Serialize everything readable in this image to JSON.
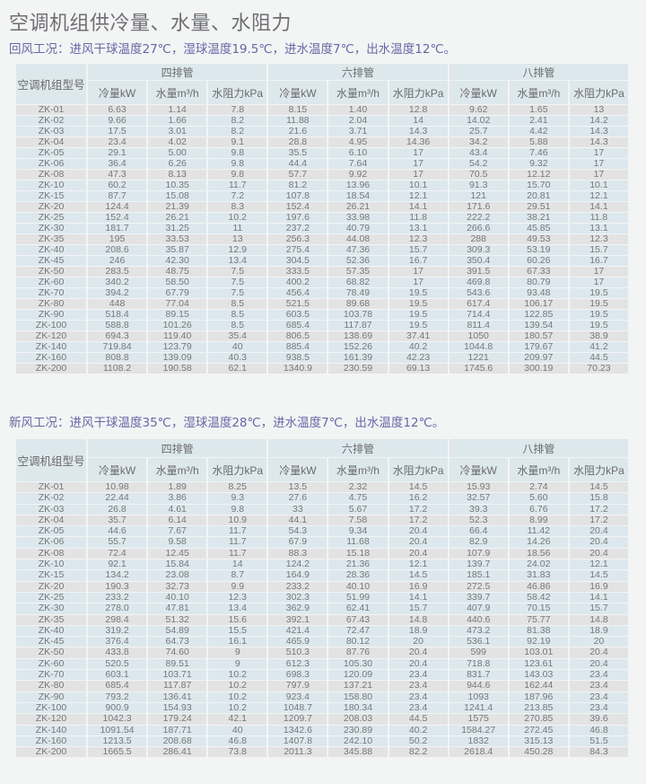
{
  "title": "空调机组供冷量、水量、水阻力",
  "model_header": "空调机组型号",
  "groups": [
    "四排管",
    "六排管",
    "八排管"
  ],
  "columns": [
    "冷量kW",
    "水量m³/h",
    "水阻力kPa"
  ],
  "colors": {
    "subtitle": "#6b65a6",
    "header_bg": "#dde8ed",
    "row_grey": "#e3e3e3",
    "row_blue": "#dce8ee"
  },
  "tables": [
    {
      "subtitle": "回风工况：进风干球温度27℃，湿球温度19.5℃，进水温度7℃，出水温度12℃。",
      "rows": [
        [
          "ZK-01",
          "6.63",
          "1.14",
          "7.8",
          "8.15",
          "1.40",
          "12.8",
          "9.62",
          "1.65",
          "13"
        ],
        [
          "ZK-02",
          "9.66",
          "1.66",
          "8.2",
          "11.88",
          "2.04",
          "14",
          "14.02",
          "2.41",
          "14.2"
        ],
        [
          "ZK-03",
          "17.5",
          "3.01",
          "8.2",
          "21.6",
          "3.71",
          "14.3",
          "25.7",
          "4.42",
          "14.3"
        ],
        [
          "ZK-04",
          "23.4",
          "4.02",
          "9.1",
          "28.8",
          "4.95",
          "14.36",
          "34.2",
          "5.88",
          "14.3"
        ],
        [
          "ZK-05",
          "29.1",
          "5.00",
          "9.8",
          "35.5",
          "6.10",
          "17",
          "43.4",
          "7.46",
          "17"
        ],
        [
          "ZK-06",
          "36.4",
          "6.26",
          "9.8",
          "44.4",
          "7.64",
          "17",
          "54.2",
          "9.32",
          "17"
        ],
        [
          "ZK-08",
          "47.3",
          "8.13",
          "9.8",
          "57.7",
          "9.92",
          "17",
          "70.5",
          "12.12",
          "17"
        ],
        [
          "ZK-10",
          "60.2",
          "10.35",
          "11.7",
          "81.2",
          "13.96",
          "10.1",
          "91.3",
          "15.70",
          "10.1"
        ],
        [
          "ZK-15",
          "87.7",
          "15.08",
          "7.2",
          "107.8",
          "18.54",
          "12.1",
          "121",
          "20.81",
          "12.1"
        ],
        [
          "ZK-20",
          "124.4",
          "21.39",
          "8.3",
          "152.4",
          "26.21",
          "14.1",
          "171.6",
          "29.51",
          "14.1"
        ],
        [
          "ZK-25",
          "152.4",
          "26.21",
          "10.2",
          "197.6",
          "33.98",
          "11.8",
          "222.2",
          "38.21",
          "11.8"
        ],
        [
          "ZK-30",
          "181.7",
          "31.25",
          "11",
          "237.2",
          "40.79",
          "13.1",
          "266.6",
          "45.85",
          "13.1"
        ],
        [
          "ZK-35",
          "195",
          "33.53",
          "13",
          "256.3",
          "44.08",
          "12.3",
          "288",
          "49.53",
          "12.3"
        ],
        [
          "ZK-40",
          "208.6",
          "35.87",
          "12.9",
          "275.4",
          "47.36",
          "15.7",
          "309.3",
          "53.19",
          "15.7"
        ],
        [
          "ZK-45",
          "246",
          "42.30",
          "13.4",
          "304.5",
          "52.36",
          "16.7",
          "350.4",
          "60.26",
          "16.7"
        ],
        [
          "ZK-50",
          "283.5",
          "48.75",
          "7.5",
          "333.5",
          "57.35",
          "17",
          "391.5",
          "67.33",
          "17"
        ],
        [
          "ZK-60",
          "340.2",
          "58.50",
          "7.5",
          "400.2",
          "68.82",
          "17",
          "469.8",
          "80.79",
          "17"
        ],
        [
          "ZK-70",
          "394.2",
          "67.79",
          "7.5",
          "456.4",
          "78.49",
          "19.5",
          "543.6",
          "93.48",
          "19.5"
        ],
        [
          "ZK-80",
          "448",
          "77.04",
          "8.5",
          "521.5",
          "89.68",
          "19.5",
          "617.4",
          "106.17",
          "19.5"
        ],
        [
          "ZK-90",
          "518.4",
          "89.15",
          "8.5",
          "603.5",
          "103.78",
          "19.5",
          "714.4",
          "122.85",
          "19.5"
        ],
        [
          "ZK-100",
          "588.8",
          "101.26",
          "8.5",
          "685.4",
          "117.87",
          "19.5",
          "811.4",
          "139.54",
          "19.5"
        ],
        [
          "ZK-120",
          "694.3",
          "119.40",
          "35.4",
          "806.5",
          "138.69",
          "37.41",
          "1050",
          "180.57",
          "38.9"
        ],
        [
          "ZK-140",
          "719.84",
          "123.79",
          "40",
          "885.4",
          "152.26",
          "40.2",
          "1044.8",
          "179.67",
          "41.2"
        ],
        [
          "ZK-160",
          "808.8",
          "139.09",
          "40.3",
          "938.5",
          "161.39",
          "42.23",
          "1221",
          "209.97",
          "44.5"
        ],
        [
          "ZK-200",
          "1108.2",
          "190.58",
          "62.1",
          "1340.9",
          "230.59",
          "69.13",
          "1745.6",
          "300.19",
          "70.23"
        ]
      ]
    },
    {
      "subtitle": "新风工况：进风干球温度35℃，湿球温度28℃，进水温度7℃，出水温度12℃。",
      "rows": [
        [
          "ZK-01",
          "10.98",
          "1.89",
          "8.25",
          "13.5",
          "2.32",
          "14.5",
          "15.93",
          "2.74",
          "14.5"
        ],
        [
          "ZK-02",
          "22.44",
          "3.86",
          "9.3",
          "27.6",
          "4.75",
          "16.2",
          "32.57",
          "5.60",
          "15.8"
        ],
        [
          "ZK-03",
          "26.8",
          "4.61",
          "9.8",
          "33",
          "5.67",
          "17.2",
          "39.3",
          "6.76",
          "17.2"
        ],
        [
          "ZK-04",
          "35.7",
          "6.14",
          "10.9",
          "44.1",
          "7.58",
          "17.2",
          "52.3",
          "8.99",
          "17.2"
        ],
        [
          "ZK-05",
          "44.6",
          "7.67",
          "11.7",
          "54.3",
          "9.34",
          "20.4",
          "66.4",
          "11.42",
          "20.4"
        ],
        [
          "ZK-06",
          "55.7",
          "9.58",
          "11.7",
          "67.9",
          "11.68",
          "20.4",
          "82.9",
          "14.26",
          "20.4"
        ],
        [
          "ZK-08",
          "72.4",
          "12.45",
          "11.7",
          "88.3",
          "15.18",
          "20.4",
          "107.9",
          "18.56",
          "20.4"
        ],
        [
          "ZK-10",
          "92.1",
          "15.84",
          "14",
          "124.2",
          "21.36",
          "12.1",
          "139.7",
          "24.02",
          "12.1"
        ],
        [
          "ZK-15",
          "134.2",
          "23.08",
          "8.7",
          "164.9",
          "28.36",
          "14.5",
          "185.1",
          "31.83",
          "14.5"
        ],
        [
          "ZK-20",
          "190.3",
          "32.73",
          "9.9",
          "233.2",
          "40.10",
          "16.9",
          "272.5",
          "46.86",
          "16.9"
        ],
        [
          "ZK-25",
          "233.2",
          "40.10",
          "12.3",
          "302.3",
          "51.99",
          "14.1",
          "339.7",
          "58.42",
          "14.1"
        ],
        [
          "ZK-30",
          "278.0",
          "47.81",
          "13.4",
          "362.9",
          "62.41",
          "15.7",
          "407.9",
          "70.15",
          "15.7"
        ],
        [
          "ZK-35",
          "298.4",
          "51.32",
          "15.6",
          "392.1",
          "67.43",
          "14.8",
          "440.6",
          "75.77",
          "14.8"
        ],
        [
          "ZK-40",
          "319.2",
          "54.89",
          "15.5",
          "421.4",
          "72.47",
          "18.9",
          "473.2",
          "81.38",
          "18.9"
        ],
        [
          "ZK-45",
          "376.4",
          "64.73",
          "16.1",
          "465.9",
          "80.12",
          "20",
          "536.1",
          "92.19",
          "20"
        ],
        [
          "ZK-50",
          "433.8",
          "74.60",
          "9",
          "510.3",
          "87.76",
          "20.4",
          "599",
          "103.01",
          "20.4"
        ],
        [
          "ZK-60",
          "520.5",
          "89.51",
          "9",
          "612.3",
          "105.30",
          "20.4",
          "718.8",
          "123.61",
          "20.4"
        ],
        [
          "ZK-70",
          "603.1",
          "103.71",
          "10.2",
          "698.3",
          "120.09",
          "23.4",
          "831.7",
          "143.03",
          "23.4"
        ],
        [
          "ZK-80",
          "685.4",
          "117.87",
          "10.2",
          "797.9",
          "137.21",
          "23.4",
          "944.6",
          "162.44",
          "23.4"
        ],
        [
          "ZK-90",
          "793.2",
          "136.41",
          "10.2",
          "923.4",
          "158.80",
          "23.4",
          "1093",
          "187.96",
          "23.4"
        ],
        [
          "ZK-100",
          "900.9",
          "154.93",
          "10.2",
          "1048.7",
          "180.34",
          "23.4",
          "1241.4",
          "213.85",
          "23.4"
        ],
        [
          "ZK-120",
          "1042.3",
          "179.24",
          "42.1",
          "1209.7",
          "208.03",
          "44.5",
          "1575",
          "270.85",
          "39.6"
        ],
        [
          "ZK-140",
          "1091.54",
          "187.71",
          "40",
          "1342.6",
          "230.89",
          "40.2",
          "1584.27",
          "272.45",
          "46.8"
        ],
        [
          "ZK-160",
          "1213.5",
          "208.68",
          "46.8",
          "1407.8",
          "242.10",
          "50.2",
          "1832",
          "315.13",
          "51.5"
        ],
        [
          "ZK-200",
          "1665.5",
          "286.41",
          "73.8",
          "2011.3",
          "345.88",
          "82.2",
          "2618.4",
          "450.28",
          "84.3"
        ]
      ]
    }
  ]
}
